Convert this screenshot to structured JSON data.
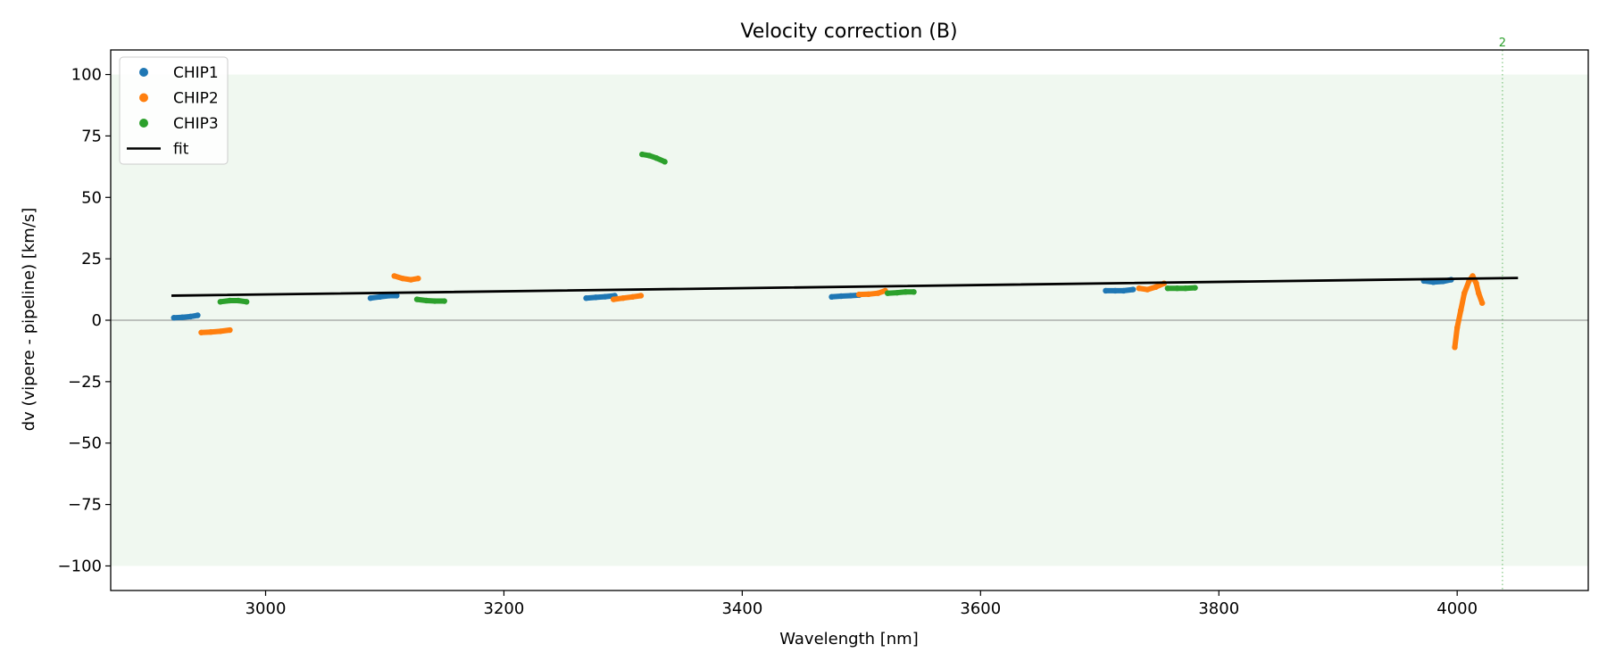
{
  "chart_data": {
    "type": "scatter",
    "title": "Velocity correction (B)",
    "xlabel": "Wavelength [nm]",
    "ylabel": "dv (vipere - pipeline) [km/s]",
    "xlim": [
      2870,
      4110
    ],
    "ylim": [
      -110,
      110
    ],
    "xticks": [
      {
        "value": 3000,
        "label": "3000"
      },
      {
        "value": 3200,
        "label": "3200"
      },
      {
        "value": 3400,
        "label": "3400"
      },
      {
        "value": 3600,
        "label": "3600"
      },
      {
        "value": 3800,
        "label": "3800"
      },
      {
        "value": 4000,
        "label": "4000"
      }
    ],
    "yticks": [
      {
        "value": 100,
        "label": "100"
      },
      {
        "value": 75,
        "label": "75"
      },
      {
        "value": 50,
        "label": "50"
      },
      {
        "value": 25,
        "label": "25"
      },
      {
        "value": 0,
        "label": "0"
      },
      {
        "value": -25,
        "label": "−25"
      },
      {
        "value": -50,
        "label": "−50"
      },
      {
        "value": -75,
        "label": "−75"
      },
      {
        "value": -100,
        "label": "−100"
      }
    ],
    "grid": false,
    "legend_position": "top-left",
    "shaded_band": {
      "y_min": -100,
      "y_max": 100,
      "color": "#2ca02c"
    },
    "zero_line": {
      "y": 0,
      "color": "#888888"
    },
    "vline": {
      "x": 4038,
      "label": "2",
      "color": "#2ca02c"
    },
    "series": [
      {
        "name": "CHIP1",
        "color": "#1f77b4",
        "segments": [
          [
            [
              2923,
              1
            ],
            [
              2930,
              1.2
            ],
            [
              2937,
              1.5
            ],
            [
              2943,
              2
            ]
          ],
          [
            [
              3088,
              9
            ],
            [
              3096,
              9.5
            ],
            [
              3104,
              10
            ],
            [
              3110,
              10
            ]
          ],
          [
            [
              3269,
              9
            ],
            [
              3277,
              9.3
            ],
            [
              3285,
              9.6
            ],
            [
              3293,
              10
            ]
          ],
          [
            [
              3475,
              9.5
            ],
            [
              3483,
              9.8
            ],
            [
              3491,
              10
            ],
            [
              3498,
              10.2
            ]
          ],
          [
            [
              3705,
              12
            ],
            [
              3713,
              12
            ],
            [
              3720,
              12
            ],
            [
              3728,
              12.5
            ]
          ],
          [
            [
              3972,
              16
            ],
            [
              3980,
              15.5
            ],
            [
              3988,
              15.8
            ],
            [
              3995,
              16.5
            ]
          ]
        ]
      },
      {
        "name": "CHIP2",
        "color": "#ff7f0e",
        "segments": [
          [
            [
              2946,
              -5
            ],
            [
              2954,
              -4.8
            ],
            [
              2962,
              -4.5
            ],
            [
              2970,
              -4
            ]
          ],
          [
            [
              3108,
              18
            ],
            [
              3115,
              17
            ],
            [
              3122,
              16.5
            ],
            [
              3128,
              17
            ]
          ],
          [
            [
              3292,
              8.5
            ],
            [
              3300,
              9
            ],
            [
              3308,
              9.5
            ],
            [
              3315,
              10
            ]
          ],
          [
            [
              3498,
              10.5
            ],
            [
              3506,
              10.6
            ],
            [
              3514,
              11
            ],
            [
              3520,
              12
            ]
          ],
          [
            [
              3733,
              13
            ],
            [
              3740,
              12.5
            ],
            [
              3747,
              13.5
            ],
            [
              3754,
              15
            ]
          ],
          [
            [
              3998,
              -11
            ],
            [
              4000,
              -3
            ],
            [
              4003,
              4
            ],
            [
              4006,
              11
            ],
            [
              4010,
              16
            ],
            [
              4013,
              18
            ],
            [
              4016,
              15
            ],
            [
              4018,
              11
            ],
            [
              4021,
              7
            ]
          ]
        ]
      },
      {
        "name": "CHIP3",
        "color": "#2ca02c",
        "segments": [
          [
            [
              2962,
              7.5
            ],
            [
              2970,
              8
            ],
            [
              2977,
              8
            ],
            [
              2984,
              7.5
            ]
          ],
          [
            [
              3127,
              8.5
            ],
            [
              3135,
              8
            ],
            [
              3142,
              7.8
            ],
            [
              3150,
              7.8
            ]
          ],
          [
            [
              3316,
              67.5
            ],
            [
              3322,
              67
            ],
            [
              3328,
              66
            ],
            [
              3335,
              64.5
            ]
          ],
          [
            [
              3522,
              11
            ],
            [
              3530,
              11.2
            ],
            [
              3537,
              11.5
            ],
            [
              3544,
              11.5
            ]
          ],
          [
            [
              3757,
              13
            ],
            [
              3765,
              13
            ],
            [
              3772,
              13
            ],
            [
              3780,
              13.2
            ]
          ]
        ]
      },
      {
        "name": "fit",
        "color": "#000000",
        "type": "line",
        "points": [
          [
            2922,
            10
          ],
          [
            4050,
            17.2
          ]
        ]
      }
    ]
  }
}
